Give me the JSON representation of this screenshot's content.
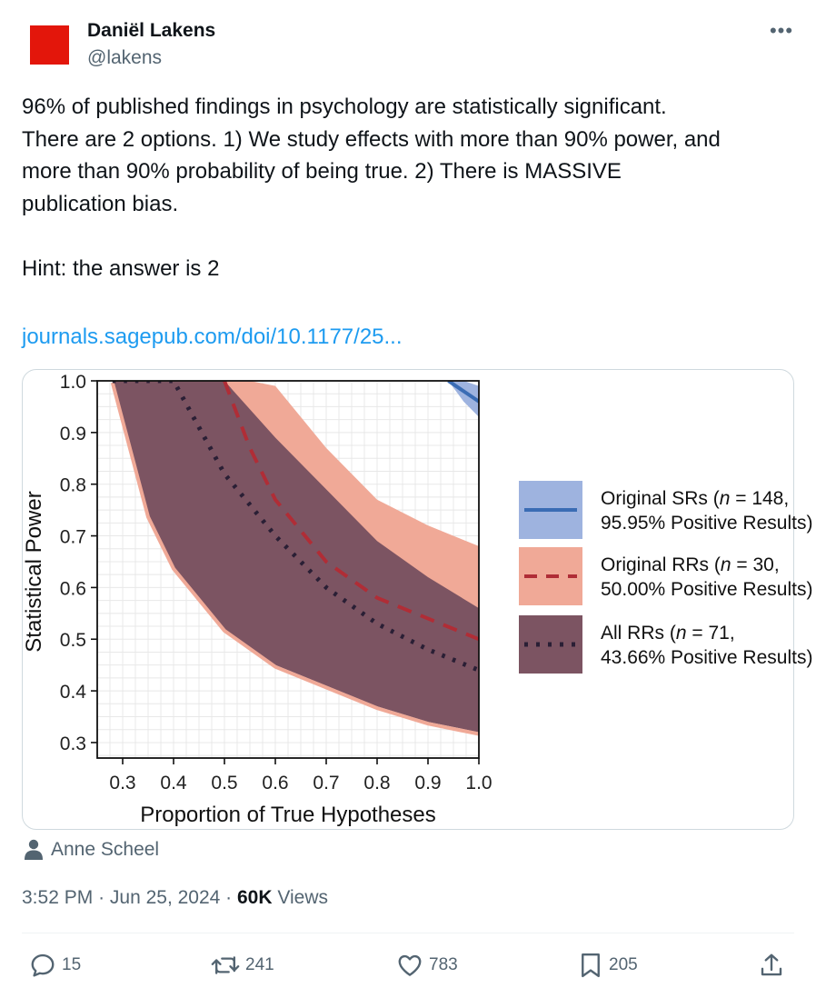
{
  "author": {
    "name": "Daniël Lakens",
    "handle": "@lakens",
    "avatar_color": "#e3160b"
  },
  "more_icon": "ellipsis-icon",
  "tweet": {
    "lines": [
      "96% of published findings in psychology are statistically significant.",
      "There are 2 options. 1) We study effects with more than 90% power, and",
      "more than 90% probability of being true. 2) There is MASSIVE",
      "publication bias."
    ],
    "hint": "Hint: the answer is 2",
    "link": "journals.sagepub.com/doi/10.1177/25..."
  },
  "media_tag": {
    "icon": "person-icon",
    "name": "Anne Scheel"
  },
  "meta": {
    "time": "3:52 PM",
    "date": "Jun 25, 2024",
    "views_count": "60K",
    "views_label": "Views"
  },
  "actions": {
    "replies": "15",
    "reposts": "241",
    "likes": "783",
    "bookmarks": "205"
  },
  "chart_data": {
    "type": "area",
    "xlabel": "Proportion of True Hypotheses",
    "ylabel": "Statistical Power",
    "xlim": [
      0.25,
      1.0
    ],
    "ylim": [
      0.27,
      1.0
    ],
    "x_ticks": [
      "0.3",
      "0.4",
      "0.5",
      "0.6",
      "0.7",
      "0.8",
      "0.9",
      "1.0"
    ],
    "y_ticks": [
      "1.0",
      "0.9",
      "0.8",
      "0.7",
      "0.6",
      "0.5",
      "0.4",
      "0.3"
    ],
    "grid": true,
    "legend_position": "right",
    "series": [
      {
        "name": "Original SRs",
        "label_line1_pre": "Original SRs (",
        "label_n": "n",
        "label_line1_post": " = 148,",
        "label_line2": "95.95% Positive Results)",
        "line_style": "solid",
        "line_color": "#3a6cb4",
        "band_color": "#9eb3df",
        "x": [
          0.94,
          0.97,
          1.0
        ],
        "center": [
          1.0,
          0.98,
          0.96
        ],
        "lower": [
          1.0,
          0.96,
          0.93
        ],
        "upper": [
          1.0,
          1.0,
          0.99
        ]
      },
      {
        "name": "Original RRs",
        "label_line1_pre": "Original RRs (",
        "label_n": "n",
        "label_line1_post": " = 30,",
        "label_line2": "50.00% Positive Results)",
        "line_style": "dashed",
        "line_color": "#b02d36",
        "band_color": "#f0a997",
        "x": [
          0.5,
          0.55,
          0.6,
          0.7,
          0.8,
          0.9,
          1.0
        ],
        "center": [
          1.0,
          0.87,
          0.77,
          0.65,
          0.58,
          0.54,
          0.5
        ],
        "lower": [
          0.96,
          0.84,
          0.76,
          0.65,
          0.58,
          0.54,
          0.5
        ],
        "upper": [
          1.0,
          1.0,
          0.99,
          0.87,
          0.77,
          0.72,
          0.68
        ]
      },
      {
        "name": "All RRs",
        "label_line1_pre": "All RRs (",
        "label_n": "n",
        "label_line1_post": " = 71,",
        "label_line2": "43.66% Positive Results)",
        "line_style": "dotted",
        "line_color": "#2a1f35",
        "band_color": "#7c5462",
        "x": [
          0.28,
          0.35,
          0.4,
          0.5,
          0.6,
          0.7,
          0.8,
          0.9,
          1.0
        ],
        "center": [
          1.0,
          1.0,
          1.0,
          0.82,
          0.7,
          0.6,
          0.53,
          0.48,
          0.44
        ],
        "lower": [
          1.0,
          0.74,
          0.64,
          0.52,
          0.45,
          0.41,
          0.37,
          0.34,
          0.32
        ],
        "upper": [
          1.0,
          1.0,
          1.0,
          1.0,
          0.89,
          0.79,
          0.69,
          0.62,
          0.56
        ]
      }
    ]
  },
  "colors": {
    "link": "#1d9bf0",
    "secondary_text": "#536471"
  }
}
